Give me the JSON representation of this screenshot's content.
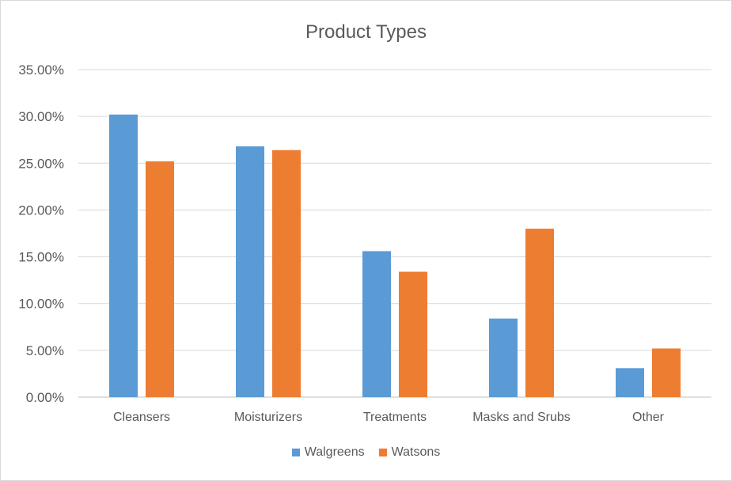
{
  "chart_data": {
    "type": "bar",
    "title": "Product Types",
    "xlabel": "",
    "ylabel": "",
    "categories": [
      "Cleansers",
      "Moisturizers",
      "Treatments",
      "Masks and Srubs",
      "Other"
    ],
    "series": [
      {
        "name": "Walgreens",
        "color": "#5b9bd5",
        "values": [
          30.2,
          26.8,
          15.6,
          8.4,
          3.1
        ]
      },
      {
        "name": "Watsons",
        "color": "#ed7d31",
        "values": [
          25.2,
          26.4,
          13.4,
          18.0,
          5.2
        ]
      }
    ],
    "ylim": [
      0,
      35
    ],
    "yticks": [
      "0.00%",
      "5.00%",
      "10.00%",
      "15.00%",
      "20.00%",
      "25.00%",
      "30.00%",
      "35.00%"
    ],
    "grid": true,
    "legend_position": "bottom"
  }
}
